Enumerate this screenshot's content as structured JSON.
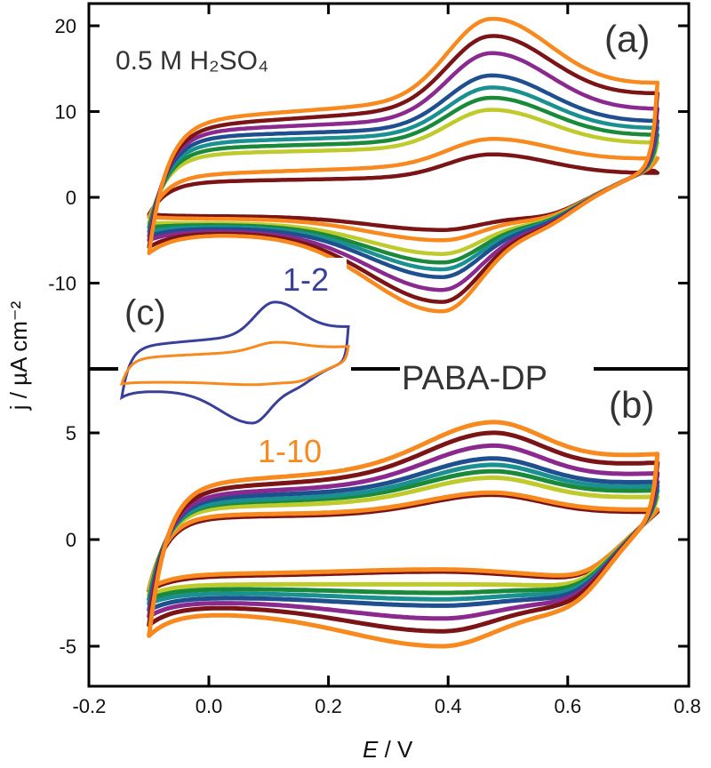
{
  "chart_data": {
    "type": "line",
    "xlabel": "E / V",
    "xlabel_var": "E",
    "xlabel_unit": " / V",
    "ylabel": "j / µA cm⁻²",
    "xlim": [
      -0.2,
      0.8
    ],
    "xticks": [
      "-0.2",
      "0.0",
      "0.2",
      "0.4",
      "0.6",
      "0.8"
    ],
    "colors": [
      "#7b1416",
      "#f7891f",
      "#bfcb2c",
      "#1a8a3a",
      "#1a9090",
      "#1f4f8f",
      "#8a2a8f",
      "#7b1416",
      "#f7891f"
    ],
    "panels": [
      {
        "label": "(a)",
        "annotation": "0.5 M H₂SO₄",
        "cycle_label": "1-2",
        "ylim": [
          -20,
          22.5
        ],
        "yticks": [
          "20",
          "10",
          "0",
          "-10"
        ],
        "yticks_values": [
          20,
          10,
          0,
          -10
        ],
        "series": [
          {
            "bf": 2.0,
            "ef": 2.8,
            "ipa": 5.0,
            "br": -2.2,
            "ica": -3.8,
            "s": -2.0
          },
          {
            "bf": 3.0,
            "ef": 4.5,
            "ipa": 6.8,
            "br": -2.5,
            "ica": -5.0,
            "s": -2.3
          },
          {
            "bf": 5.3,
            "ef": 6.3,
            "ipa": 10.2,
            "br": -3.0,
            "ica": -6.6,
            "s": -3.0
          },
          {
            "bf": 6.0,
            "ef": 7.2,
            "ipa": 11.6,
            "br": -3.2,
            "ica": -7.6,
            "s": -3.5
          },
          {
            "bf": 6.7,
            "ef": 8.0,
            "ipa": 12.8,
            "br": -3.4,
            "ica": -8.4,
            "s": -4.0
          },
          {
            "bf": 7.4,
            "ef": 8.8,
            "ipa": 14.2,
            "br": -3.6,
            "ica": -9.3,
            "s": -4.5
          },
          {
            "bf": 8.2,
            "ef": 10.2,
            "ipa": 16.8,
            "br": -3.9,
            "ica": -10.8,
            "s": -5.0
          },
          {
            "bf": 9.0,
            "ef": 12.0,
            "ipa": 18.8,
            "br": -4.1,
            "ica": -12.2,
            "s": -5.8
          },
          {
            "bf": 9.8,
            "ef": 13.2,
            "ipa": 20.8,
            "br": -4.3,
            "ica": -13.3,
            "s": -6.5
          }
        ]
      },
      {
        "label": "(b)",
        "annotation": "PABA-DP",
        "cycle_label": "1-10",
        "ylim": [
          -6.9,
          8
        ],
        "yticks": [
          "5",
          "0",
          "-5"
        ],
        "yticks_values": [
          5,
          0,
          -5
        ],
        "series": [
          {
            "bf": 1.1,
            "ef": 1.3,
            "ipa": 2.1,
            "br": -1.7,
            "ica": -1.5,
            "s": -2.4
          },
          {
            "bf": 1.2,
            "ef": 1.4,
            "ipa": 2.2,
            "br": -1.6,
            "ica": -1.4,
            "s": -2.3
          },
          {
            "bf": 1.6,
            "ef": 2.0,
            "ipa": 2.9,
            "br": -2.1,
            "ica": -2.1,
            "s": -2.6
          },
          {
            "bf": 1.8,
            "ef": 2.3,
            "ipa": 3.2,
            "br": -2.3,
            "ica": -2.5,
            "s": -2.8
          },
          {
            "bf": 1.9,
            "ef": 2.5,
            "ipa": 3.5,
            "br": -2.5,
            "ica": -2.8,
            "s": -3.0
          },
          {
            "bf": 2.1,
            "ef": 2.7,
            "ipa": 3.8,
            "br": -2.7,
            "ica": -3.1,
            "s": -3.3
          },
          {
            "bf": 2.3,
            "ef": 3.1,
            "ipa": 4.4,
            "br": -2.9,
            "ica": -3.7,
            "s": -3.6
          },
          {
            "bf": 2.6,
            "ef": 3.6,
            "ipa": 5.0,
            "br": -3.1,
            "ica": -4.3,
            "s": -4.0
          },
          {
            "bf": 2.9,
            "ef": 4.0,
            "ipa": 5.5,
            "br": -3.4,
            "ica": -5.0,
            "s": -4.5
          }
        ]
      }
    ],
    "inset": {
      "label": "(c)",
      "series": [
        {
          "color": "#3a3f9a",
          "bf": 8.7,
          "ef": 13.0,
          "ipa": 20.0,
          "br": -5.0,
          "ica": -14.0,
          "s": -6.8
        },
        {
          "color": "#f7891f",
          "bf": 5.0,
          "ef": 7.5,
          "ipa": 8.7,
          "br": -2.5,
          "ica": -3.2,
          "s": -3.0
        }
      ]
    }
  }
}
